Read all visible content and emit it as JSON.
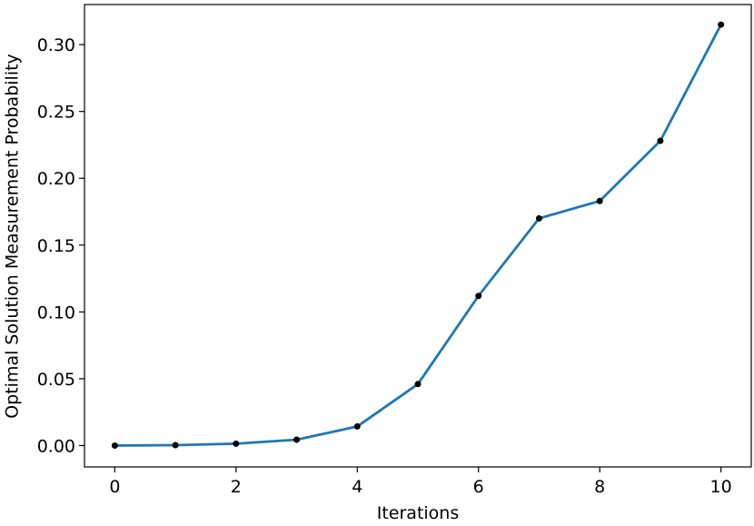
{
  "chart_data": {
    "type": "line",
    "x_label": "Iterations",
    "y_label": "Optimal Solution Measurement Probability",
    "x": [
      0,
      1,
      2,
      3,
      4,
      5,
      6,
      7,
      8,
      9,
      10
    ],
    "series": [
      {
        "color": "#1f77b4",
        "marker_color": "#000000",
        "values": [
          0.0,
          0.0003,
          0.0014,
          0.0044,
          0.0143,
          0.046,
          0.112,
          0.17,
          0.183,
          0.228,
          0.315
        ]
      }
    ],
    "xlim": [
      -0.5,
      10.5
    ],
    "ylim": [
      -0.016,
      0.33
    ],
    "xticks": [
      0,
      2,
      4,
      6,
      8,
      10
    ],
    "yticks": [
      {
        "value": 0,
        "label": "0.00"
      },
      {
        "value": 0.05,
        "label": "0.05"
      },
      {
        "value": 0.1,
        "label": "0.10"
      },
      {
        "value": 0.15,
        "label": "0.15"
      },
      {
        "value": 0.2,
        "label": "0.20"
      },
      {
        "value": 0.25,
        "label": "0.25"
      },
      {
        "value": 0.3,
        "label": "0.30"
      }
    ]
  }
}
